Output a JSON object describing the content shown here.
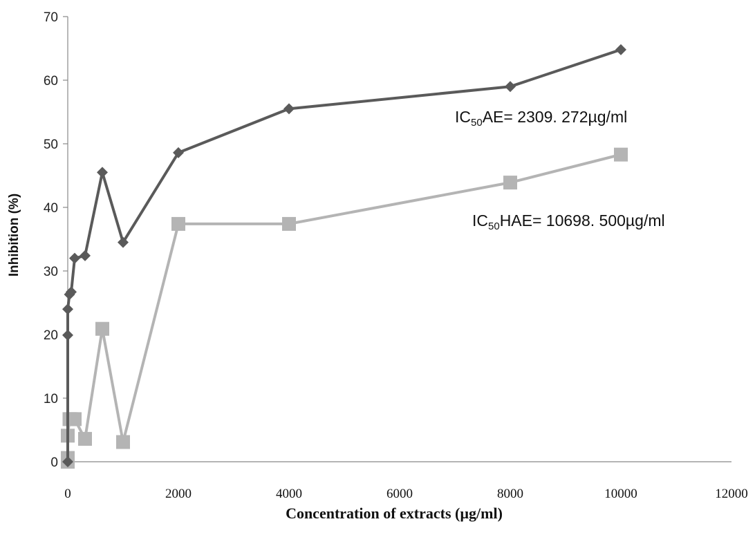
{
  "chart_data": {
    "type": "line",
    "title": "",
    "xlabel": "Concentration of extracts (µg/ml)",
    "ylabel": "Inhibition (%)",
    "xlim": [
      0,
      12000
    ],
    "ylim": [
      0,
      70
    ],
    "x_ticks": [
      "0",
      "2000",
      "4000",
      "6000",
      "8000",
      "10000",
      "12000"
    ],
    "y_ticks": [
      "0",
      "10",
      "20",
      "30",
      "40",
      "50",
      "60",
      "70"
    ],
    "grid": false,
    "legend": "none",
    "series": [
      {
        "marker": "diamond",
        "color": "#5a5a5a",
        "x": [
          0,
          0,
          0,
          31.25,
          62.5,
          125,
          312.5,
          625,
          1000,
          2000,
          4000,
          8000,
          10000
        ],
        "y": [
          0,
          19.9,
          24,
          26.3,
          26.7,
          32,
          32.4,
          45.5,
          34.5,
          48.6,
          55.5,
          59,
          64.8
        ]
      },
      {
        "marker": "square",
        "color": "#b4b4b4",
        "x": [
          0,
          0,
          0,
          31.25,
          62.5,
          125,
          312.5,
          625,
          1000,
          2000,
          4000,
          8000,
          10000
        ],
        "y": [
          0,
          0.6,
          4.1,
          6.7,
          6.7,
          6.7,
          3.6,
          20.9,
          3.1,
          37.4,
          37.4,
          43.9,
          48.3
        ]
      }
    ],
    "annotations": [
      {
        "prefix": "IC",
        "sub": "50",
        "suffix": "AE= 2309. 272µg/ml"
      },
      {
        "prefix": "IC",
        "sub": "50",
        "suffix": "HAE= 10698. 500µg/ml"
      }
    ]
  }
}
